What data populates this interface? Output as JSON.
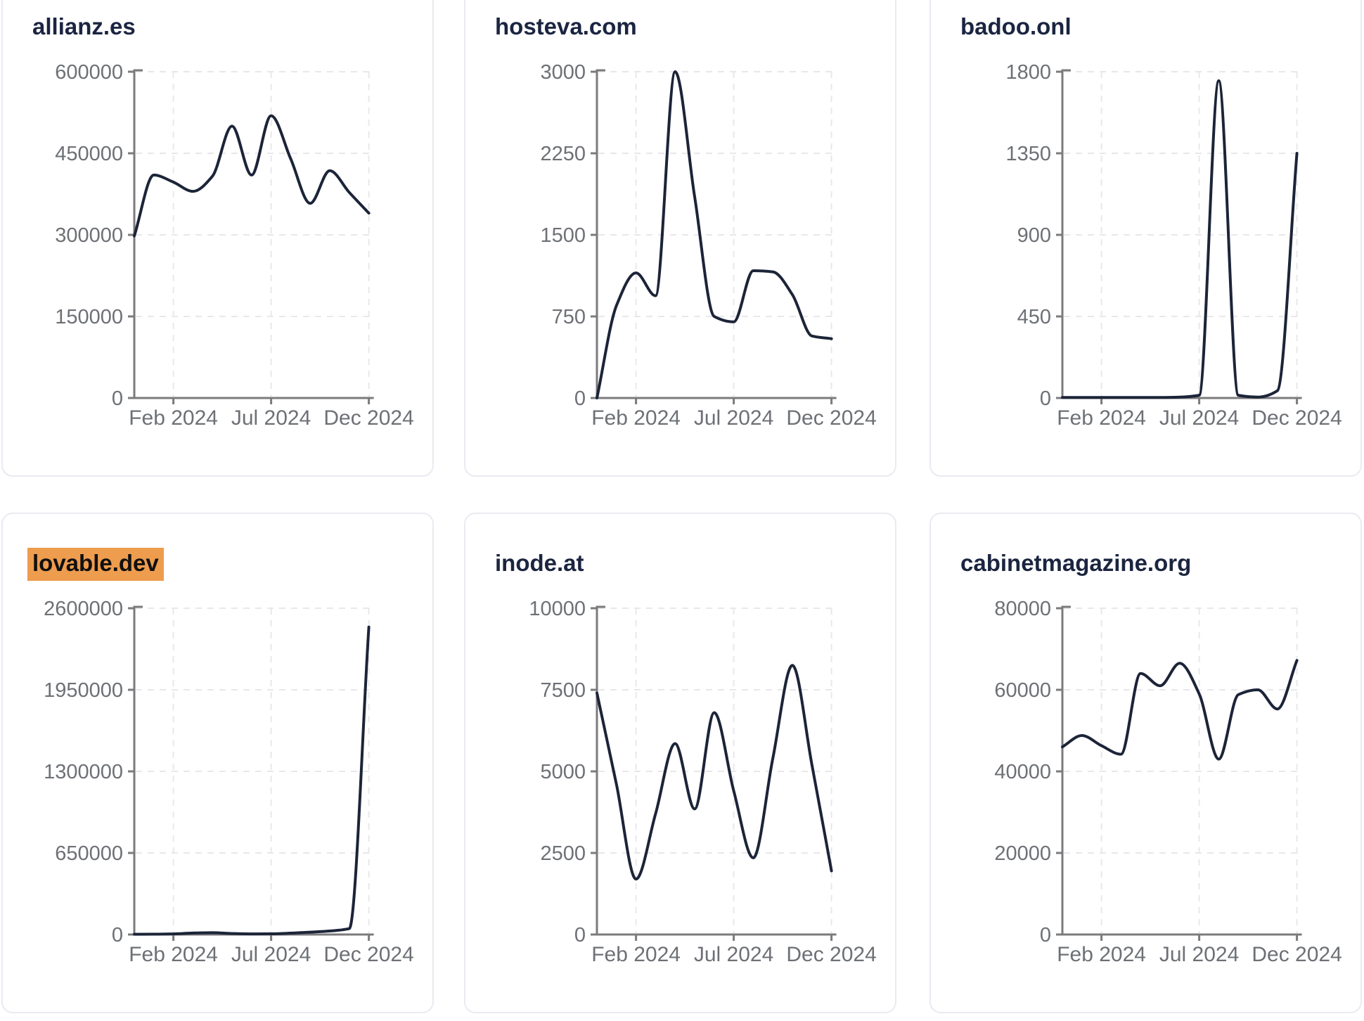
{
  "page": {
    "background": "#ffffff",
    "grid_columns": 3,
    "grid_rows": 2
  },
  "theme": {
    "line_color": "#1c2438",
    "title_color": "#1b2540",
    "axis_color": "#7b7b7e",
    "tick_label_color": "#6d7075",
    "grid_color": "#e8e8ec",
    "card_border_color": "#e9ebf1",
    "card_background": "#ffffff",
    "highlight_background": "#ee9c4e",
    "highlight_text_color": "#101010"
  },
  "chart_data": [
    {
      "type": "line",
      "title": "allianz.es",
      "highlighted": false,
      "grid": true,
      "x_tick_labels": [
        "Feb 2024",
        "Jul 2024",
        "Dec 2024"
      ],
      "x_tick_point_index": [
        2,
        7,
        12
      ],
      "y_ticks": [
        0,
        150000,
        300000,
        450000,
        600000
      ],
      "ylim": [
        0,
        600000
      ],
      "values": [
        298000,
        410000,
        397000,
        380000,
        408000,
        500000,
        410000,
        519000,
        440000,
        358000,
        418000,
        378000,
        340000
      ]
    },
    {
      "type": "line",
      "title": "hosteva.com",
      "highlighted": false,
      "grid": true,
      "x_tick_labels": [
        "Feb 2024",
        "Jul 2024",
        "Dec 2024"
      ],
      "x_tick_point_index": [
        2,
        7,
        12
      ],
      "y_ticks": [
        0,
        750,
        1500,
        2250,
        3000
      ],
      "ylim": [
        0,
        3000
      ],
      "values": [
        0,
        850,
        1150,
        940,
        3000,
        1850,
        750,
        700,
        1170,
        1160,
        950,
        570,
        545
      ]
    },
    {
      "type": "line",
      "title": "badoo.onl",
      "highlighted": false,
      "grid": true,
      "x_tick_labels": [
        "Feb 2024",
        "Jul 2024",
        "Dec 2024"
      ],
      "x_tick_point_index": [
        2,
        7,
        12
      ],
      "y_ticks": [
        0,
        450,
        900,
        1350,
        1800
      ],
      "ylim": [
        0,
        1800
      ],
      "values": [
        3,
        3,
        3,
        3,
        3,
        3,
        5,
        15,
        1750,
        15,
        5,
        40,
        1350
      ]
    },
    {
      "type": "line",
      "title": "lovable.dev",
      "highlighted": true,
      "grid": true,
      "x_tick_labels": [
        "Feb 2024",
        "Jul 2024",
        "Dec 2024"
      ],
      "x_tick_point_index": [
        2,
        7,
        12
      ],
      "y_ticks": [
        0,
        650000,
        1300000,
        1950000,
        2600000
      ],
      "ylim": [
        0,
        2600000
      ],
      "values": [
        2000,
        2500,
        5000,
        12000,
        15000,
        8000,
        5000,
        5500,
        11000,
        19000,
        28000,
        47000,
        2450000
      ]
    },
    {
      "type": "line",
      "title": "inode.at",
      "highlighted": false,
      "grid": true,
      "x_tick_labels": [
        "Feb 2024",
        "Jul 2024",
        "Dec 2024"
      ],
      "x_tick_point_index": [
        2,
        7,
        12
      ],
      "y_ticks": [
        0,
        2500,
        5000,
        7500,
        10000
      ],
      "ylim": [
        0,
        10000
      ],
      "values": [
        7400,
        4600,
        1700,
        3700,
        5850,
        3850,
        6800,
        4400,
        2350,
        5400,
        8250,
        5200,
        1950
      ]
    },
    {
      "type": "line",
      "title": "cabinetmagazine.org",
      "highlighted": false,
      "grid": true,
      "x_tick_labels": [
        "Feb 2024",
        "Jul 2024",
        "Dec 2024"
      ],
      "x_tick_point_index": [
        2,
        7,
        12
      ],
      "y_ticks": [
        0,
        20000,
        40000,
        60000,
        80000
      ],
      "ylim": [
        0,
        80000
      ],
      "values": [
        46000,
        48800,
        46300,
        44200,
        64000,
        61000,
        66500,
        59000,
        43000,
        58800,
        60000,
        55300,
        67200
      ]
    }
  ]
}
